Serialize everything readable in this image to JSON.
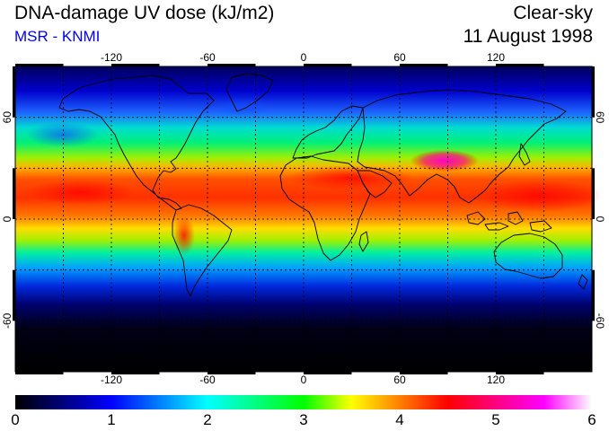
{
  "header": {
    "title": "DNA-damage UV dose (kJ/m2)",
    "source": "MSR - KNMI",
    "condition": "Clear-sky",
    "date": "11 August 1998"
  },
  "map": {
    "projection": "equirectangular",
    "lon_range": [
      -180,
      180
    ],
    "lat_range": [
      -90,
      90
    ],
    "gridline_style": "dotted",
    "lon_ticks": [
      {
        "value": -120,
        "label": "-120"
      },
      {
        "value": -60,
        "label": "-60"
      },
      {
        "value": 0,
        "label": "0"
      },
      {
        "value": 60,
        "label": "60"
      },
      {
        "value": 120,
        "label": "120"
      }
    ],
    "lat_ticks": [
      {
        "value": 60,
        "label": "60"
      },
      {
        "value": 0,
        "label": "0"
      },
      {
        "value": -60,
        "label": "-60"
      }
    ],
    "coastlines": true,
    "colors": {
      "frame": "#000000",
      "gridlines": "#000000",
      "coastlines": "#000000"
    }
  },
  "colorbar": {
    "min": 0,
    "max": 6,
    "tick_labels": [
      "0",
      "1",
      "2",
      "3",
      "4",
      "5",
      "6"
    ],
    "color_stops": [
      {
        "value": 0.0,
        "color": "#000000"
      },
      {
        "value": 0.5,
        "color": "#000080"
      },
      {
        "value": 1.0,
        "color": "#0000ff"
      },
      {
        "value": 1.5,
        "color": "#0080ff"
      },
      {
        "value": 2.0,
        "color": "#00ffff"
      },
      {
        "value": 2.5,
        "color": "#00ff80"
      },
      {
        "value": 3.0,
        "color": "#00ff00"
      },
      {
        "value": 3.5,
        "color": "#ffff00"
      },
      {
        "value": 4.0,
        "color": "#ff8000"
      },
      {
        "value": 4.5,
        "color": "#ff0000"
      },
      {
        "value": 5.0,
        "color": "#ff0080"
      },
      {
        "value": 5.5,
        "color": "#ff00ff"
      },
      {
        "value": 6.0,
        "color": "#ffffff"
      }
    ]
  }
}
